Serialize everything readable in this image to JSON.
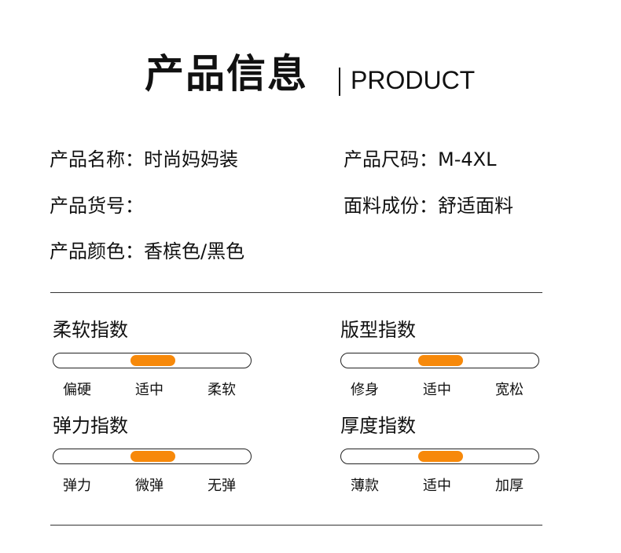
{
  "title": "产品信息",
  "subtitle": "PRODUCT",
  "info": [
    {
      "label": "产品名称：",
      "value": "时尚妈妈装"
    },
    {
      "label": "产品尺码：",
      "value": "M-4XL"
    },
    {
      "label": "产品货号：",
      "value": ""
    },
    {
      "label": "面料成份：",
      "value": "舒适面料"
    },
    {
      "label": "产品颜色：",
      "value": "香槟色/黑色"
    }
  ],
  "accent": "#F7890A",
  "indices": [
    {
      "title": "柔软指数",
      "options": [
        "偏硬",
        "适中",
        "柔软"
      ],
      "selected": 1
    },
    {
      "title": "版型指数",
      "options": [
        "修身",
        "适中",
        "宽松"
      ],
      "selected": 1
    },
    {
      "title": "弹力指数",
      "options": [
        "弹力",
        "微弹",
        "无弹"
      ],
      "selected": 1
    },
    {
      "title": "厚度指数",
      "options": [
        "薄款",
        "适中",
        "加厚"
      ],
      "selected": 1
    }
  ]
}
